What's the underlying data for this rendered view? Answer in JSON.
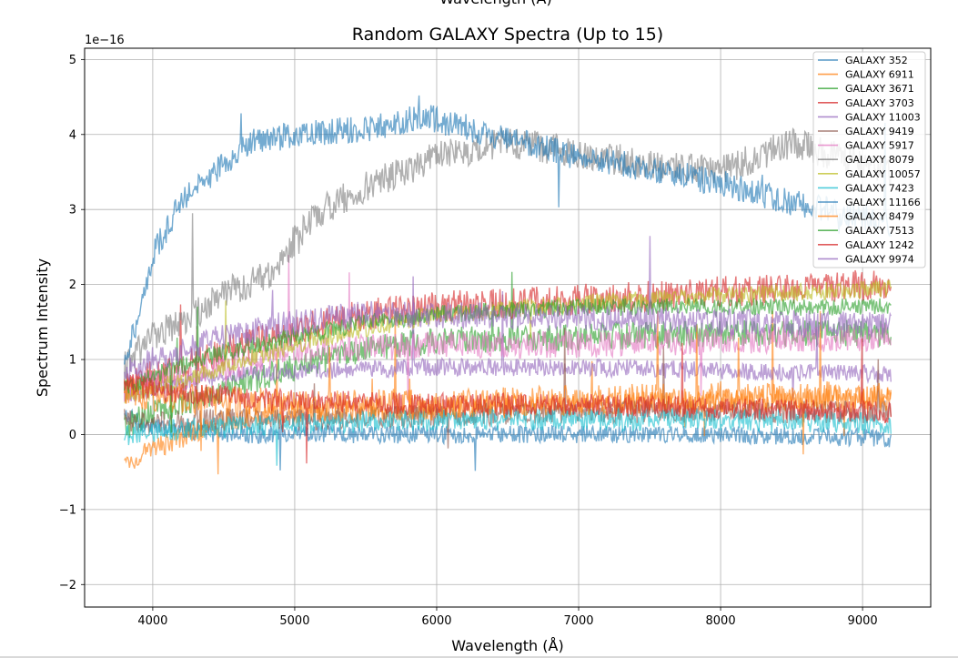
{
  "chart_data": {
    "type": "line",
    "title": "Random GALAXY Spectra (Up to 15)",
    "xlabel": "Wavelength (Å)",
    "ylabel": "Spectrum Intensity",
    "top_cut_label": "Wavelength (Å)",
    "y_offset_label": "1e−16",
    "xlim": [
      3520,
      9480
    ],
    "ylim": [
      -2.3,
      5.15
    ],
    "x_ticks": [
      4000,
      5000,
      6000,
      7000,
      8000,
      9000
    ],
    "x_tick_labels": [
      "4000",
      "5000",
      "6000",
      "7000",
      "8000",
      "9000"
    ],
    "y_ticks": [
      -2,
      -1,
      0,
      1,
      2,
      3,
      4,
      5
    ],
    "y_tick_labels": [
      "−2",
      "−1",
      "0",
      "1",
      "2",
      "3",
      "4",
      "5"
    ],
    "grid": true,
    "legend_position": "top-right",
    "x_range": [
      3800,
      9200
    ],
    "series": [
      {
        "name": "GALAXY 352",
        "color": "#1f77b4",
        "points": [
          [
            3800,
            0.25
          ],
          [
            4000,
            0.1
          ],
          [
            4500,
            0.0
          ],
          [
            5000,
            0.0
          ],
          [
            6000,
            0.0
          ],
          [
            7000,
            0.0
          ],
          [
            8000,
            0.0
          ],
          [
            9200,
            -0.05
          ]
        ]
      },
      {
        "name": "GALAXY 6911",
        "color": "#ff7f0e",
        "points": [
          [
            3800,
            -0.4
          ],
          [
            4000,
            -0.2
          ],
          [
            4500,
            0.2
          ],
          [
            5000,
            0.3
          ],
          [
            6000,
            0.35
          ],
          [
            7000,
            0.4
          ],
          [
            8000,
            0.45
          ],
          [
            9200,
            0.5
          ]
        ]
      },
      {
        "name": "GALAXY 3671",
        "color": "#2ca02c",
        "points": [
          [
            3800,
            0.1
          ],
          [
            4000,
            0.3
          ],
          [
            4500,
            0.6
          ],
          [
            5000,
            0.9
          ],
          [
            5500,
            1.15
          ],
          [
            6000,
            1.25
          ],
          [
            7000,
            1.3
          ],
          [
            8000,
            1.35
          ],
          [
            9200,
            1.35
          ]
        ]
      },
      {
        "name": "GALAXY 3703",
        "color": "#d62728",
        "points": [
          [
            3800,
            0.6
          ],
          [
            4000,
            0.8
          ],
          [
            4500,
            1.1
          ],
          [
            5000,
            1.4
          ],
          [
            5500,
            1.6
          ],
          [
            6000,
            1.7
          ],
          [
            7000,
            1.8
          ],
          [
            8000,
            1.9
          ],
          [
            9200,
            2.0
          ]
        ]
      },
      {
        "name": "GALAXY 11003",
        "color": "#9467bd",
        "points": [
          [
            3800,
            0.5
          ],
          [
            4000,
            0.6
          ],
          [
            4500,
            0.8
          ],
          [
            5000,
            0.85
          ],
          [
            6000,
            0.9
          ],
          [
            7000,
            0.9
          ],
          [
            8000,
            0.85
          ],
          [
            9200,
            0.8
          ]
        ]
      },
      {
        "name": "GALAXY 9419",
        "color": "#8c564b",
        "points": [
          [
            3800,
            0.2
          ],
          [
            4000,
            0.15
          ],
          [
            4500,
            0.2
          ],
          [
            5000,
            0.2
          ],
          [
            6000,
            0.25
          ],
          [
            7000,
            0.3
          ],
          [
            8000,
            0.3
          ],
          [
            9200,
            0.3
          ]
        ]
      },
      {
        "name": "GALAXY 5917",
        "color": "#e377c2",
        "points": [
          [
            3800,
            0.6
          ],
          [
            4000,
            0.7
          ],
          [
            4500,
            0.9
          ],
          [
            5000,
            1.1
          ],
          [
            6000,
            1.2
          ],
          [
            7000,
            1.2
          ],
          [
            8000,
            1.25
          ],
          [
            9200,
            1.3
          ]
        ]
      },
      {
        "name": "GALAXY 8079",
        "color": "#7f7f7f",
        "points": [
          [
            3800,
            0.9
          ],
          [
            4000,
            1.3
          ],
          [
            4300,
            1.6
          ],
          [
            4500,
            1.9
          ],
          [
            4800,
            2.1
          ],
          [
            5000,
            2.6
          ],
          [
            5200,
            3.0
          ],
          [
            5500,
            3.3
          ],
          [
            6000,
            3.7
          ],
          [
            6500,
            3.9
          ],
          [
            7000,
            3.75
          ],
          [
            7500,
            3.6
          ],
          [
            8000,
            3.5
          ],
          [
            8500,
            3.9
          ],
          [
            9000,
            3.6
          ],
          [
            9200,
            3.5
          ]
        ]
      },
      {
        "name": "GALAXY 10057",
        "color": "#bcbd22",
        "points": [
          [
            3800,
            0.5
          ],
          [
            4000,
            0.6
          ],
          [
            4500,
            0.9
          ],
          [
            5000,
            1.2
          ],
          [
            5500,
            1.4
          ],
          [
            6000,
            1.6
          ],
          [
            7000,
            1.75
          ],
          [
            8000,
            1.85
          ],
          [
            9200,
            1.95
          ]
        ]
      },
      {
        "name": "GALAXY 7423",
        "color": "#17becf",
        "points": [
          [
            3800,
            0.0
          ],
          [
            4000,
            0.05
          ],
          [
            4500,
            0.1
          ],
          [
            5000,
            0.15
          ],
          [
            6000,
            0.2
          ],
          [
            7000,
            0.2
          ],
          [
            8000,
            0.2
          ],
          [
            9200,
            0.15
          ]
        ]
      },
      {
        "name": "GALAXY 11166",
        "color": "#1f77b4",
        "points": [
          [
            3800,
            1.0
          ],
          [
            3900,
            1.6
          ],
          [
            4000,
            2.4
          ],
          [
            4200,
            3.1
          ],
          [
            4500,
            3.6
          ],
          [
            4700,
            3.9
          ],
          [
            5000,
            4.0
          ],
          [
            5300,
            4.05
          ],
          [
            5600,
            4.1
          ],
          [
            5900,
            4.25
          ],
          [
            6200,
            4.1
          ],
          [
            6600,
            3.9
          ],
          [
            7000,
            3.7
          ],
          [
            7500,
            3.55
          ],
          [
            8000,
            3.35
          ],
          [
            8500,
            3.1
          ],
          [
            9000,
            2.9
          ],
          [
            9200,
            2.8
          ]
        ]
      },
      {
        "name": "GALAXY 8479",
        "color": "#ff7f0e",
        "points": [
          [
            3800,
            0.6
          ],
          [
            4000,
            0.5
          ],
          [
            4500,
            0.45
          ],
          [
            5000,
            0.4
          ],
          [
            6000,
            0.4
          ],
          [
            7000,
            0.45
          ],
          [
            8000,
            0.5
          ],
          [
            9200,
            0.5
          ]
        ]
      },
      {
        "name": "GALAXY 7513",
        "color": "#2ca02c",
        "points": [
          [
            3800,
            0.6
          ],
          [
            4000,
            0.8
          ],
          [
            4500,
            1.1
          ],
          [
            5000,
            1.3
          ],
          [
            5500,
            1.5
          ],
          [
            6000,
            1.6
          ],
          [
            7000,
            1.7
          ],
          [
            8000,
            1.7
          ],
          [
            9200,
            1.7
          ]
        ]
      },
      {
        "name": "GALAXY 1242",
        "color": "#d62728",
        "points": [
          [
            3800,
            0.7
          ],
          [
            4000,
            0.6
          ],
          [
            4500,
            0.5
          ],
          [
            5000,
            0.45
          ],
          [
            6000,
            0.4
          ],
          [
            7000,
            0.4
          ],
          [
            8000,
            0.35
          ],
          [
            9200,
            0.3
          ]
        ]
      },
      {
        "name": "GALAXY 9974",
        "color": "#9467bd",
        "points": [
          [
            3800,
            0.8
          ],
          [
            4000,
            1.0
          ],
          [
            4500,
            1.3
          ],
          [
            5000,
            1.5
          ],
          [
            5500,
            1.6
          ],
          [
            6000,
            1.6
          ],
          [
            7000,
            1.55
          ],
          [
            8000,
            1.5
          ],
          [
            9200,
            1.45
          ]
        ]
      }
    ]
  }
}
